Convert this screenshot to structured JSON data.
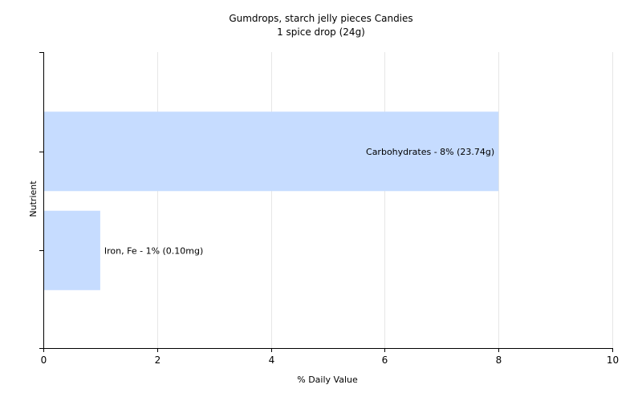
{
  "chart_data": {
    "type": "bar",
    "orientation": "horizontal",
    "title": "Gumdrops, starch jelly pieces Candies",
    "subtitle": "1 spice drop (24g)",
    "xlabel": "% Daily Value",
    "ylabel": "Nutrient",
    "xlim": [
      0,
      10
    ],
    "x_ticks": [
      "0",
      "2",
      "4",
      "6",
      "8",
      "10"
    ],
    "grid": true,
    "categories": [
      "Carbohydrates",
      "Iron, Fe"
    ],
    "values": [
      8,
      1
    ],
    "data_labels": [
      "Carbohydrates - 8% (23.74g)",
      "Iron, Fe - 1% (0.10mg)"
    ],
    "bar_color": "#c6dcff",
    "grid_color": "#e6e6e6",
    "axis_color": "#000000"
  }
}
